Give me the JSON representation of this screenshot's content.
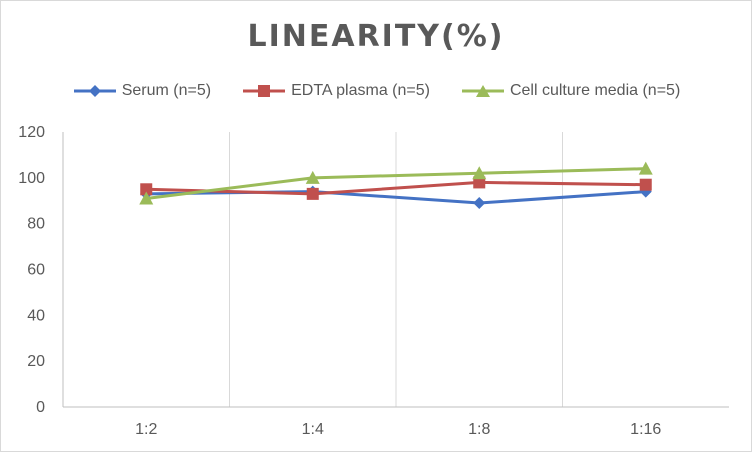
{
  "chart_data": {
    "type": "line",
    "title": "LINEARITY(%)",
    "categories": [
      "1:2",
      "1:4",
      "1:8",
      "1:16"
    ],
    "ylim": [
      0,
      120
    ],
    "yticks": [
      0,
      20,
      40,
      60,
      80,
      100,
      120
    ],
    "grid": "vertical",
    "legend_position": "top",
    "series": [
      {
        "name": "Serum (n=5)",
        "values": [
          93,
          94,
          89,
          94
        ],
        "color": "#4472C4",
        "marker": "diamond"
      },
      {
        "name": "EDTA plasma (n=5)",
        "values": [
          95,
          93,
          98,
          97
        ],
        "color": "#C0504D",
        "marker": "square"
      },
      {
        "name": "Cell culture media (n=5)",
        "values": [
          91,
          100,
          102,
          104
        ],
        "color": "#9BBB59",
        "marker": "triangle"
      }
    ]
  }
}
